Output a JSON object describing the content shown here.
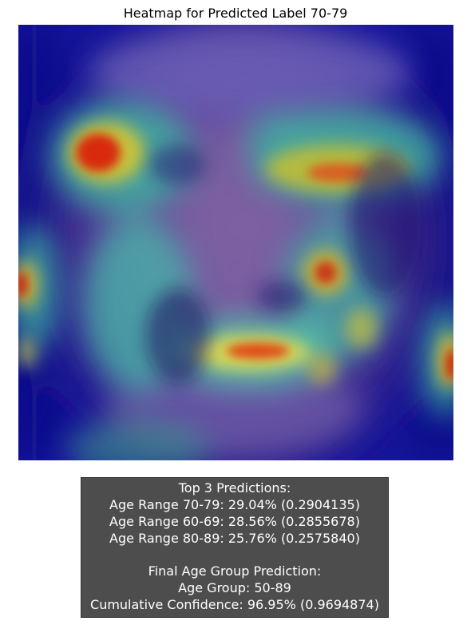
{
  "figure": {
    "title": "Heatmap for Predicted Label 70-79"
  },
  "heatmap": {
    "description_icon": "face-heatmap-image",
    "colormap": "jet"
  },
  "predictions": {
    "header": "Top 3 Predictions:",
    "items": [
      "Age Range 70-79: 29.04% (0.2904135)",
      "Age Range 60-69: 28.56% (0.2855678)",
      "Age Range 80-89: 25.76% (0.2575840)"
    ],
    "final_header": "Final Age Group Prediction:",
    "age_group": "Age Group: 50-89",
    "confidence": "Cumulative Confidence: 96.95% (0.9694874)"
  }
}
